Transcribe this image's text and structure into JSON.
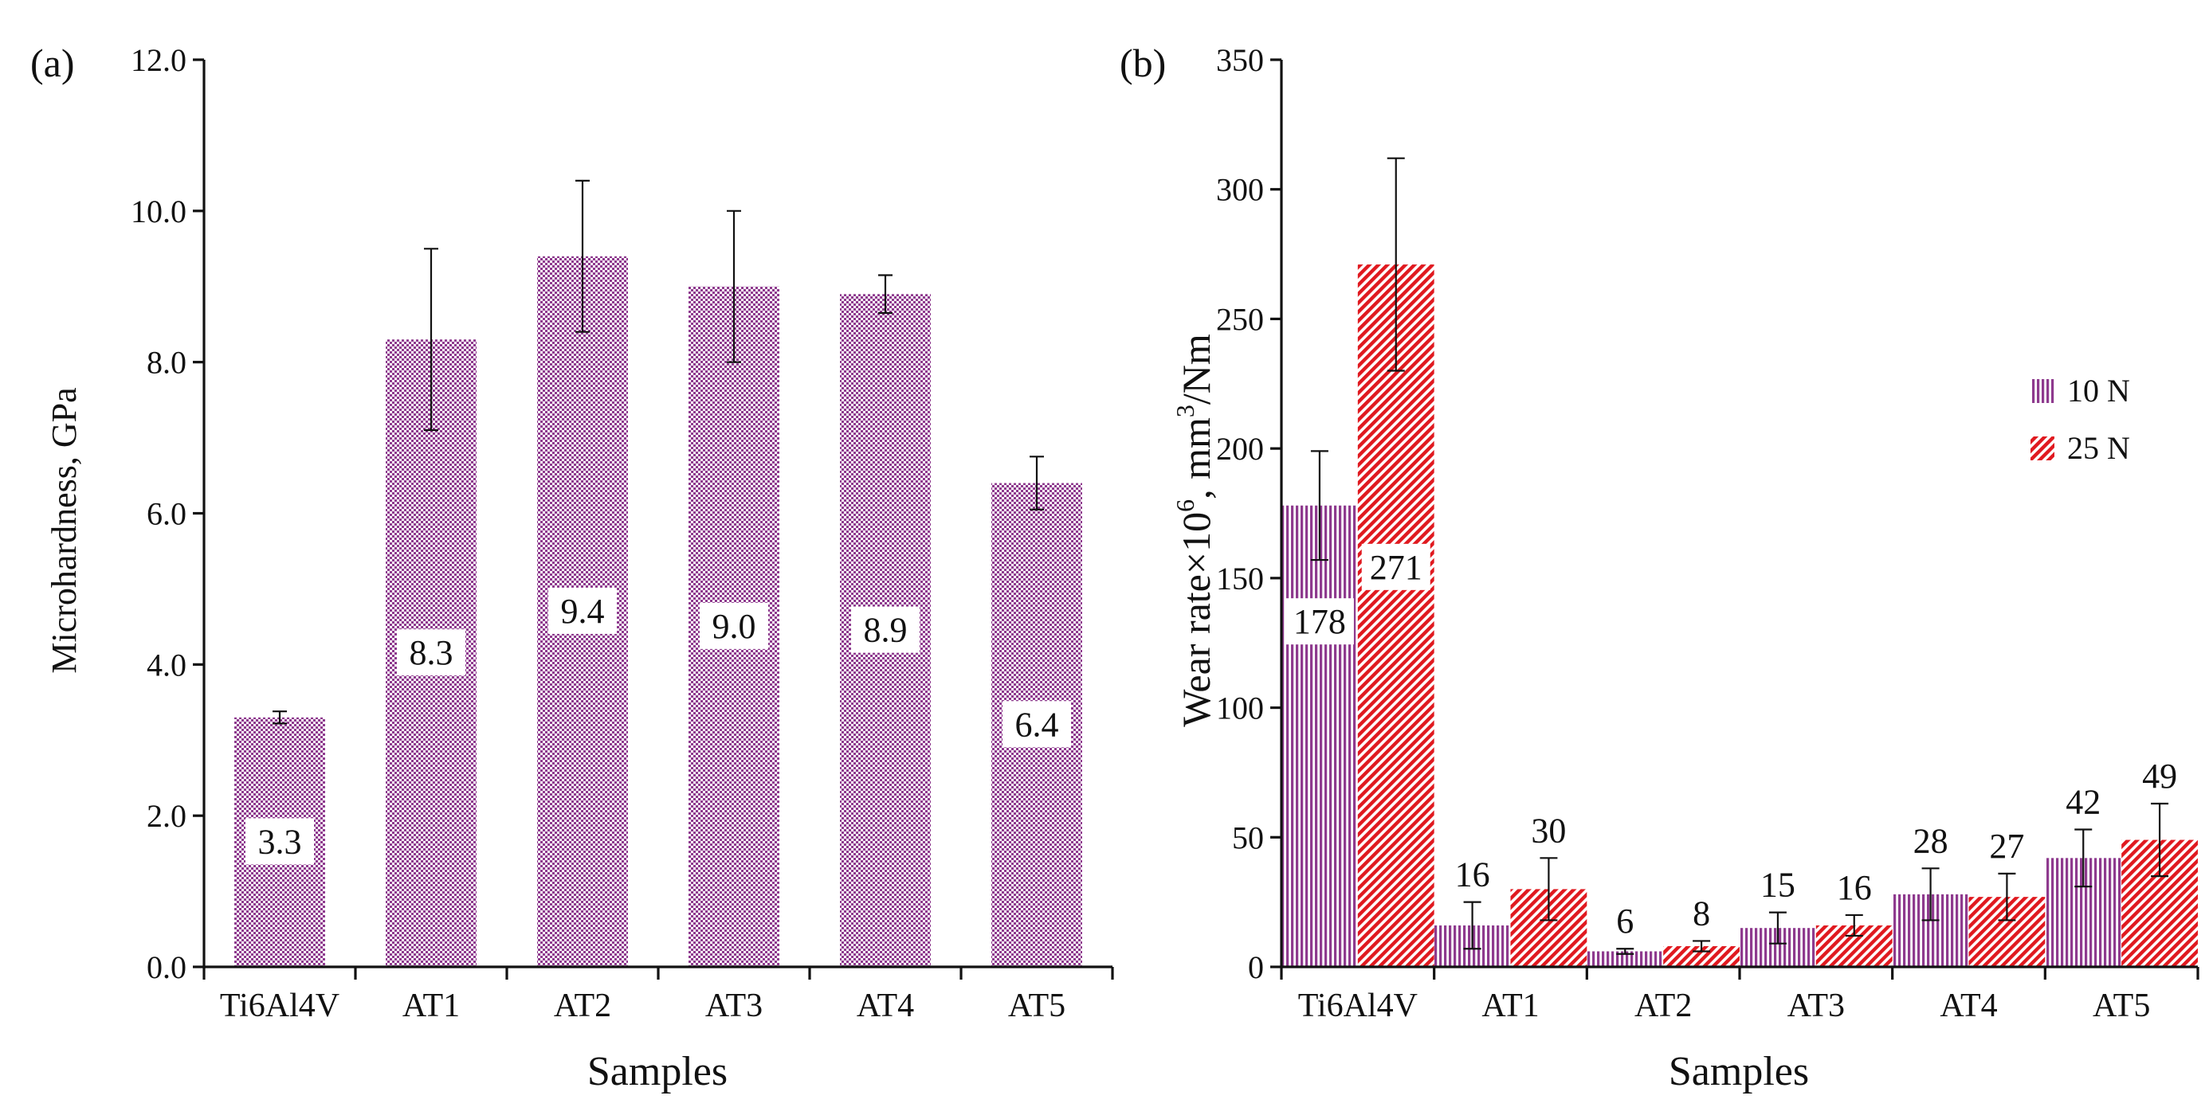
{
  "chart_data": [
    {
      "panel_label": "(a)",
      "type": "bar",
      "title": "",
      "xlabel": "Samples",
      "ylabel": "Microhardness, GPa",
      "categories": [
        "Ti6Al4V",
        "AT1",
        "AT2",
        "AT3",
        "AT4",
        "AT5"
      ],
      "ylim": [
        0,
        12
      ],
      "yticks": [
        0,
        2,
        4,
        6,
        8,
        10,
        12
      ],
      "ytick_labels": [
        "0.0",
        "2.0",
        "4.0",
        "6.0",
        "8.0",
        "10.0",
        "12.0"
      ],
      "grid": false,
      "series": [
        {
          "name": "Microhardness",
          "color": "#8e3a8e",
          "pattern": "checker",
          "values": [
            3.3,
            8.3,
            9.4,
            9.0,
            8.9,
            6.4
          ],
          "errors": [
            0.08,
            1.2,
            1.0,
            1.0,
            0.25,
            0.35
          ],
          "labels": [
            "3.3",
            "8.3",
            "9.4",
            "9.0",
            "8.9",
            "6.4"
          ]
        }
      ]
    },
    {
      "panel_label": "(b)",
      "type": "bar",
      "title": "",
      "xlabel": "Samples",
      "ylabel": "Wear rate×10⁶, mm³/Nm",
      "ylabel_parts": [
        "Wear rate×10",
        "6",
        ", mm",
        "3",
        "/Nm"
      ],
      "categories": [
        "Ti6Al4V",
        "AT1",
        "AT2",
        "AT3",
        "AT4",
        "AT5"
      ],
      "ylim": [
        0,
        350
      ],
      "yticks": [
        0,
        50,
        100,
        150,
        200,
        250,
        300,
        350
      ],
      "ytick_labels": [
        "0",
        "50",
        "100",
        "150",
        "200",
        "250",
        "300",
        "350"
      ],
      "grid": false,
      "legend_position": "right",
      "series": [
        {
          "name": "10 N",
          "color": "#8e3a8e",
          "pattern": "vertical-stripes",
          "values": [
            178,
            16,
            6,
            15,
            28,
            42
          ],
          "errors": [
            21,
            9,
            1,
            6,
            10,
            11
          ],
          "labels": [
            "178",
            "16",
            "6",
            "15",
            "28",
            "42"
          ]
        },
        {
          "name": "25 N",
          "color": "#e0191f",
          "pattern": "diagonal-stripes",
          "values": [
            271,
            30,
            8,
            16,
            27,
            49
          ],
          "errors": [
            41,
            12,
            2,
            4,
            9,
            14
          ],
          "labels": [
            "271",
            "30",
            "8",
            "16",
            "27",
            "49"
          ]
        }
      ]
    }
  ]
}
